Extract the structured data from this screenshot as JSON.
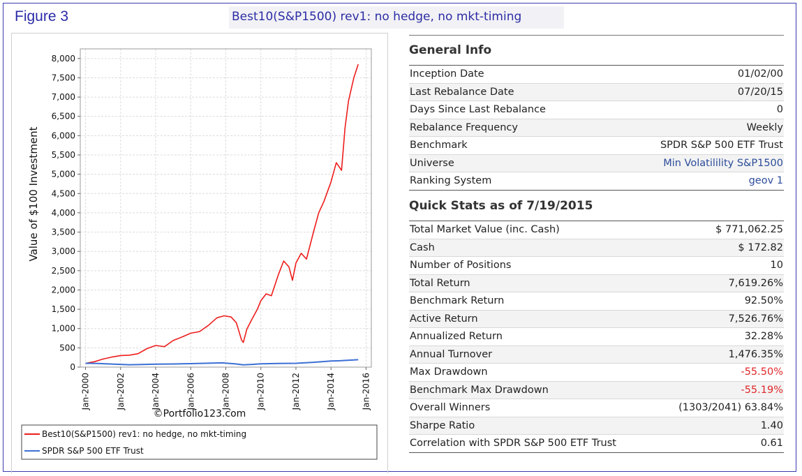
{
  "figure_label": "Figure 3",
  "caption": "Best10(S&P1500) rev1: no hedge, no mkt-timing",
  "general_info": {
    "title": "General Info",
    "rows": [
      {
        "label": "Inception Date",
        "value": "01/02/00"
      },
      {
        "label": "Last Rebalance Date",
        "value": "07/20/15"
      },
      {
        "label": "Days Since Last Rebalance",
        "value": "0"
      },
      {
        "label": "Rebalance Frequency",
        "value": "Weekly"
      },
      {
        "label": "Benchmark",
        "value": "SPDR S&P 500 ETF Trust"
      },
      {
        "label": "Universe",
        "value": "Min Volatilility S&P1500",
        "link": true
      },
      {
        "label": "Ranking System",
        "value": "geov 1",
        "link": true
      }
    ]
  },
  "quick_stats": {
    "title": "Quick Stats as of 7/19/2015",
    "rows": [
      {
        "label": "Total Market Value (inc. Cash)",
        "value": "$ 771,062.25"
      },
      {
        "label": "Cash",
        "value": "$ 172.82"
      },
      {
        "label": "Number of Positions",
        "value": "10"
      },
      {
        "label": "Total Return",
        "value": "7,619.26%"
      },
      {
        "label": "Benchmark Return",
        "value": "92.50%"
      },
      {
        "label": "Active Return",
        "value": "7,526.76%"
      },
      {
        "label": "Annualized Return",
        "value": "32.28%"
      },
      {
        "label": "Annual Turnover",
        "value": "1,476.35%"
      },
      {
        "label": "Max Drawdown",
        "value": "-55.50%",
        "negative": true
      },
      {
        "label": "Benchmark Max Drawdown",
        "value": "-55.19%",
        "negative": true
      },
      {
        "label": "Overall Winners",
        "value": "(1303/2041) 63.84%"
      },
      {
        "label": "Sharpe Ratio",
        "value": "1.40"
      },
      {
        "label": "Correlation with SPDR S&P 500 ETF Trust",
        "value": "0.61"
      }
    ]
  },
  "chart_data": {
    "type": "line",
    "ylabel": "Value of $100 Investment",
    "watermark": "©Portfolio123.com",
    "ylim": [
      0,
      8000
    ],
    "y_ticks": [
      "0",
      "500",
      "1,000",
      "1,500",
      "2,000",
      "2,500",
      "3,000",
      "3,500",
      "4,000",
      "4,500",
      "5,000",
      "5,500",
      "6,000",
      "6,500",
      "7,000",
      "7,500",
      "8,000"
    ],
    "y_tick_values": [
      0,
      500,
      1000,
      1500,
      2000,
      2500,
      3000,
      3500,
      4000,
      4500,
      5000,
      5500,
      6000,
      6500,
      7000,
      7500,
      8000
    ],
    "x_ticks": [
      "Jan-2000",
      "Jan-2002",
      "Jan-2004",
      "Jan-2006",
      "Jan-2008",
      "Jan-2010",
      "Jan-2012",
      "Jan-2014",
      "Jan-2016"
    ],
    "x_tick_values": [
      2000,
      2002,
      2004,
      2006,
      2008,
      2010,
      2012,
      2014,
      2016
    ],
    "xlim": [
      1999.7,
      2016.3
    ],
    "grid": true,
    "legend_position": "bottom",
    "series": [
      {
        "name": "Best10(S&P1500) rev1:  no hedge, no mkt-timing",
        "color": "#ee1c1c",
        "x": [
          2000.0,
          2000.5,
          2001.0,
          2001.5,
          2002.0,
          2002.5,
          2003.0,
          2003.5,
          2004.0,
          2004.5,
          2005.0,
          2005.5,
          2006.0,
          2006.5,
          2007.0,
          2007.5,
          2007.9,
          2008.3,
          2008.6,
          2008.9,
          2009.0,
          2009.2,
          2009.5,
          2009.8,
          2010.0,
          2010.3,
          2010.6,
          2011.0,
          2011.3,
          2011.6,
          2011.8,
          2012.0,
          2012.3,
          2012.6,
          2013.0,
          2013.3,
          2013.6,
          2014.0,
          2014.3,
          2014.6,
          2014.8,
          2015.0,
          2015.3,
          2015.55
        ],
        "y": [
          100,
          140,
          210,
          260,
          300,
          310,
          350,
          480,
          560,
          530,
          690,
          780,
          880,
          920,
          1080,
          1280,
          1330,
          1300,
          1150,
          700,
          640,
          980,
          1250,
          1500,
          1720,
          1900,
          1850,
          2400,
          2750,
          2600,
          2250,
          2700,
          2950,
          2800,
          3500,
          4000,
          4300,
          4800,
          5300,
          5100,
          6200,
          6900,
          7500,
          7850
        ]
      },
      {
        "name": "SPDR S&P 500 ETF Trust",
        "color": "#3c6fd4",
        "x": [
          2000.0,
          2000.7,
          2001.5,
          2002.5,
          2003.0,
          2004.0,
          2005.0,
          2006.0,
          2007.0,
          2007.8,
          2008.5,
          2009.0,
          2009.5,
          2010.0,
          2011.0,
          2012.0,
          2013.0,
          2014.0,
          2014.5,
          2015.0,
          2015.55
        ],
        "y": [
          100,
          95,
          80,
          62,
          65,
          78,
          82,
          90,
          102,
          110,
          85,
          58,
          70,
          85,
          95,
          100,
          125,
          158,
          165,
          180,
          192
        ]
      }
    ]
  }
}
